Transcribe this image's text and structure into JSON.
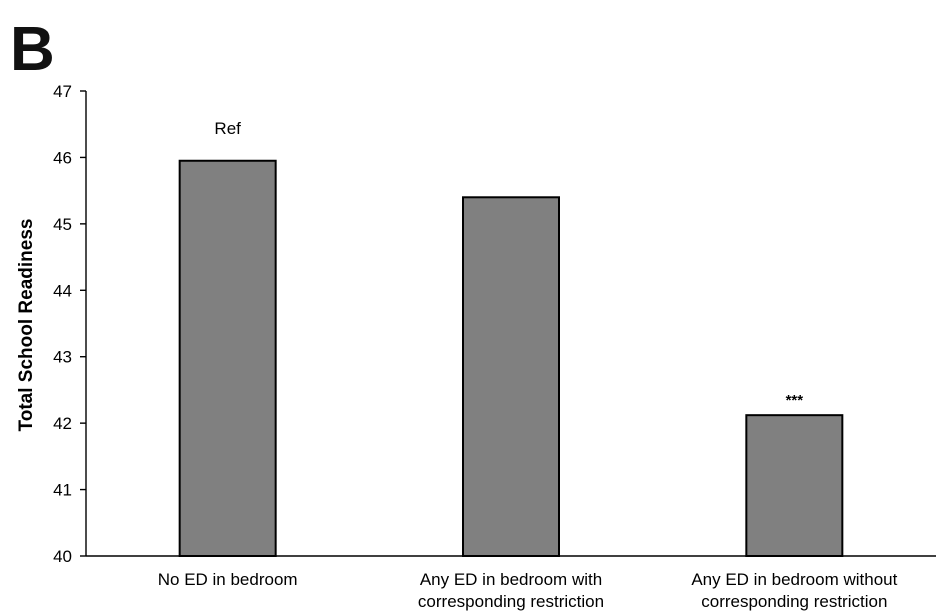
{
  "panel_label": "B",
  "colors": {
    "bar_fill": "#808080",
    "bar_stroke": "#000000",
    "axis": "#000000"
  },
  "chart_data": {
    "type": "bar",
    "ylabel": "Total School Readiness",
    "xlabel": "",
    "ylim": [
      40,
      47
    ],
    "yticks": [
      40,
      41,
      42,
      43,
      44,
      45,
      46,
      47
    ],
    "categories": [
      [
        "No ED in bedroom"
      ],
      [
        "Any ED in bedroom with",
        "corresponding restriction"
      ],
      [
        "Any ED in bedroom without",
        "corresponding restriction"
      ]
    ],
    "values": [
      45.95,
      45.4,
      42.12
    ],
    "annotations": [
      "Ref",
      "",
      "***"
    ],
    "grid": false,
    "legend": "none"
  }
}
